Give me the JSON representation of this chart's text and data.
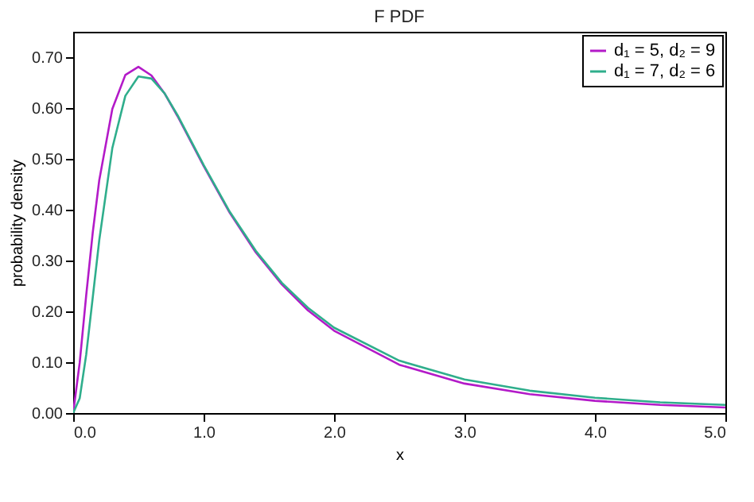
{
  "chart_data": {
    "type": "line",
    "title": "F PDF",
    "xlabel": "x",
    "ylabel": "probability density",
    "x": [
      0,
      0.05,
      0.1,
      0.15,
      0.2,
      0.3,
      0.4,
      0.5,
      0.6,
      0.7,
      0.8,
      1.0,
      1.2,
      1.4,
      1.6,
      1.8,
      2.0,
      2.5,
      3.0,
      3.5,
      4.0,
      4.5,
      5.0
    ],
    "series": [
      {
        "name": "d₁ = 5, d₂ = 9",
        "color": "#b31ac8",
        "values": [
          0,
          0.099,
          0.232,
          0.355,
          0.458,
          0.598,
          0.665,
          0.681,
          0.664,
          0.629,
          0.584,
          0.486,
          0.394,
          0.316,
          0.253,
          0.202,
          0.162,
          0.095,
          0.058,
          0.037,
          0.024,
          0.016,
          0.011
        ]
      },
      {
        "name": "d₁ = 7, d₂ = 6",
        "color": "#2fae8c",
        "values": [
          0,
          0.029,
          0.115,
          0.227,
          0.34,
          0.521,
          0.624,
          0.662,
          0.658,
          0.629,
          0.586,
          0.488,
          0.396,
          0.319,
          0.256,
          0.207,
          0.168,
          0.103,
          0.066,
          0.044,
          0.03,
          0.021,
          0.016
        ]
      }
    ],
    "xlim": [
      0,
      5
    ],
    "ylim": [
      0,
      0.75
    ],
    "xticks": [
      {
        "value": 0,
        "label": "0.0"
      },
      {
        "value": 1,
        "label": "1.0"
      },
      {
        "value": 2,
        "label": "2.0"
      },
      {
        "value": 3,
        "label": "3.0"
      },
      {
        "value": 4,
        "label": "4.0"
      },
      {
        "value": 5,
        "label": "5.0"
      }
    ],
    "yticks": [
      {
        "value": 0,
        "label": "0.00"
      },
      {
        "value": 0.1,
        "label": "0.10"
      },
      {
        "value": 0.2,
        "label": "0.20"
      },
      {
        "value": 0.3,
        "label": "0.30"
      },
      {
        "value": 0.4,
        "label": "0.40"
      },
      {
        "value": 0.5,
        "label": "0.50"
      },
      {
        "value": 0.6,
        "label": "0.60"
      },
      {
        "value": 0.7,
        "label": "0.70"
      }
    ],
    "grid": false,
    "legend": "top right",
    "marker": "none",
    "line_style": "solid"
  }
}
